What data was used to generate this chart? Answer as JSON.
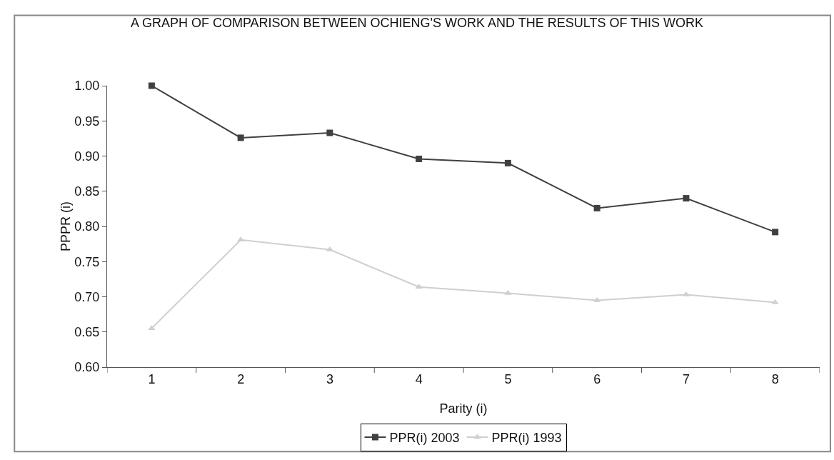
{
  "chart_data": {
    "type": "line",
    "title": "A GRAPH OF COMPARISON BETWEEN OCHIENG'S WORK AND THE RESULTS OF THIS WORK",
    "xlabel": "Parity (i)",
    "ylabel": "PPPR (i)",
    "categories": [
      "1",
      "2",
      "3",
      "4",
      "5",
      "6",
      "7",
      "8"
    ],
    "series": [
      {
        "name": "PPR(i) 2003",
        "color": "#404040",
        "marker": "square",
        "values": [
          1.0,
          0.926,
          0.933,
          0.896,
          0.89,
          0.826,
          0.84,
          0.792
        ]
      },
      {
        "name": "PPR(i) 1993",
        "color": "#cfcfcf",
        "marker": "triangle",
        "values": [
          0.655,
          0.781,
          0.767,
          0.714,
          0.705,
          0.695,
          0.703,
          0.692
        ]
      }
    ],
    "ylim": [
      0.6,
      1.0
    ],
    "yticks": [
      {
        "value": 0.6,
        "label": "0.60"
      },
      {
        "value": 0.65,
        "label": "0.65"
      },
      {
        "value": 0.7,
        "label": "0.70"
      },
      {
        "value": 0.75,
        "label": "0.75"
      },
      {
        "value": 0.8,
        "label": "0.80"
      },
      {
        "value": 0.85,
        "label": "0.85"
      },
      {
        "value": 0.9,
        "label": "0.90"
      },
      {
        "value": 0.95,
        "label": "0.95"
      },
      {
        "value": 1.0,
        "label": "1.00"
      }
    ],
    "grid": false,
    "legend": "bottom",
    "line_style": "solid"
  }
}
